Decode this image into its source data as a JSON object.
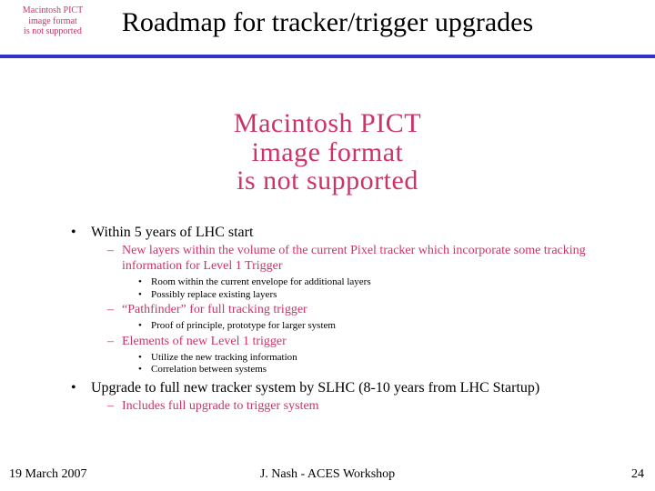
{
  "title": "Roadmap for tracker/trigger upgrades",
  "pict": {
    "l1": "Macintosh PICT",
    "l2": "image format",
    "l3": "is not supported"
  },
  "bul": {
    "b1": "•",
    "b2": "–",
    "b3": "•"
  },
  "a": {
    "text": "Within 5 years of LHC start",
    "sub": {
      "s1": {
        "text": "New layers within the volume of the current Pixel tracker which incorporate some tracking information for Level 1 Trigger",
        "t1": "Room within the current envelope for additional layers",
        "t2": "Possibly replace existing layers"
      },
      "s2": {
        "text": "“Pathfinder” for full tracking trigger",
        "t1": "Proof of principle, prototype for larger system"
      },
      "s3": {
        "text": "Elements of new Level 1 trigger",
        "t1": "Utilize the new tracking information",
        "t2": "Correlation between systems"
      }
    }
  },
  "b": {
    "text": "Upgrade to full new tracker system by SLHC (8-10 years from LHC Startup)",
    "sub": {
      "s1": {
        "text": "Includes full upgrade to trigger system"
      }
    }
  },
  "footer": {
    "date": "19 March 2007",
    "center": "J. Nash  - ACES Workshop",
    "page": "24"
  }
}
